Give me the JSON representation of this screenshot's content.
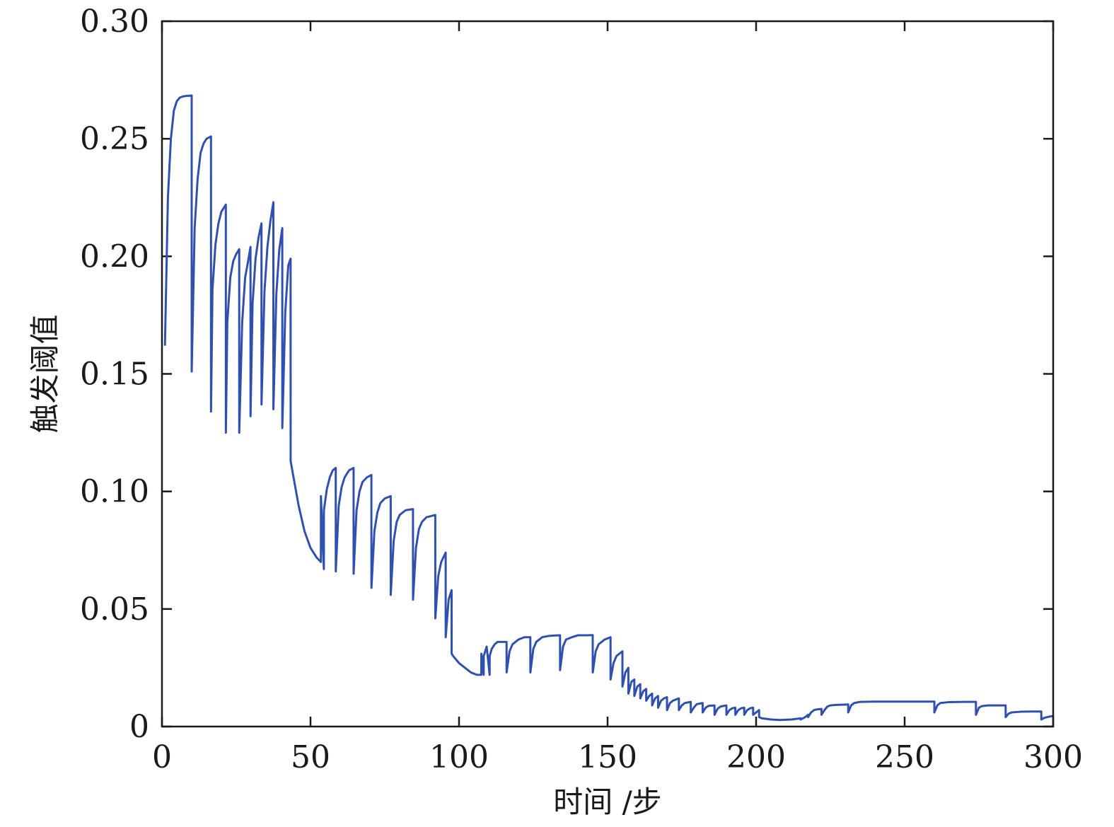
{
  "chart_data": {
    "type": "line",
    "title": "",
    "xlabel": "时间 /步",
    "ylabel": "触发阈值",
    "xlim": [
      0,
      300
    ],
    "ylim": [
      0,
      0.3
    ],
    "xticks": [
      0,
      50,
      100,
      150,
      200,
      250,
      300
    ],
    "xtick_labels": [
      "0",
      "50",
      "100",
      "150",
      "200",
      "250",
      "300"
    ],
    "yticks": [
      0,
      0.05,
      0.1,
      0.15,
      0.2,
      0.25,
      0.3
    ],
    "ytick_labels": [
      "0",
      "0.05",
      "0.10",
      "0.15",
      "0.20",
      "0.25",
      "0.30"
    ],
    "grid": false,
    "line_color": "#3050b0",
    "series": [
      {
        "x": [
          1,
          2,
          3,
          4,
          5,
          6,
          7,
          8,
          9,
          10,
          10.01,
          11,
          12,
          13,
          14,
          15,
          16.5,
          16.51,
          17,
          18,
          19,
          20,
          21.5,
          21.51,
          22,
          23,
          24,
          25,
          26,
          26.01,
          27,
          28,
          29,
          29.8,
          29.81,
          30.5,
          31.5,
          32.5,
          33.5,
          33.51,
          34.5,
          35.5,
          36.5,
          37.5,
          37.51,
          38.5,
          39.5,
          40.5,
          40.51,
          41.5,
          42.5,
          43.3,
          43.31,
          44,
          46,
          48,
          50,
          52,
          53.5,
          53.51,
          54.5,
          54.51,
          55.5,
          56.5,
          57.5,
          58.5,
          58.51,
          59.5,
          60.5,
          61.5,
          63,
          64.5,
          64.51,
          65.5,
          66.5,
          67.5,
          69,
          70.5,
          70.51,
          71.5,
          72.5,
          73.5,
          75,
          77,
          77.01,
          78,
          79,
          80,
          82,
          84.5,
          84.51,
          85.5,
          86.5,
          87.5,
          89,
          92,
          92.01,
          93,
          94,
          95.5,
          95.51,
          96.5,
          97.5,
          97.51,
          98,
          100,
          102,
          104,
          106,
          107.5,
          107.51,
          108.3,
          108.31,
          109.3,
          110.3,
          110.31,
          111,
          112,
          113,
          114.5,
          116,
          116.01,
          117,
          118,
          120,
          122,
          124,
          124.01,
          125,
          126,
          128,
          130,
          132,
          134,
          134.01,
          135,
          136,
          138,
          140,
          143,
          145,
          145.01,
          146,
          147,
          149,
          151,
          151.01,
          152,
          153,
          154,
          155,
          155.01,
          156,
          157,
          157.01,
          158,
          159,
          159.01,
          160,
          161,
          161.01,
          162,
          163,
          163.01,
          164,
          165,
          165.01,
          166,
          167,
          167.01,
          168,
          169,
          170,
          170.01,
          171,
          172,
          174,
          174.01,
          175,
          176,
          178,
          178.01,
          179,
          180,
          182,
          182.01,
          183,
          184,
          186,
          186.01,
          187,
          188,
          190,
          190.01,
          191,
          192,
          193,
          193.01,
          194,
          195,
          196,
          196.01,
          197,
          198,
          199,
          199.01,
          200,
          201,
          201.01,
          202,
          205,
          208,
          212,
          215,
          215.01,
          216.5,
          217.5,
          217.51,
          218.5,
          219.5,
          220.5,
          222,
          222.01,
          223,
          224,
          225,
          227,
          229,
          231,
          231.01,
          232,
          233,
          235,
          240,
          245,
          250,
          255,
          260,
          260.01,
          261,
          262,
          265,
          270,
          274,
          274.01,
          275,
          276,
          278,
          282,
          284,
          284.01,
          285,
          286,
          289,
          293,
          296,
          296.01,
          297,
          298,
          299,
          300
        ],
        "y": [
          0.162,
          0.225,
          0.25,
          0.262,
          0.266,
          0.2675,
          0.268,
          0.2682,
          0.2683,
          0.2684,
          0.151,
          0.212,
          0.233,
          0.244,
          0.248,
          0.25,
          0.251,
          0.134,
          0.186,
          0.205,
          0.214,
          0.219,
          0.222,
          0.125,
          0.172,
          0.191,
          0.198,
          0.201,
          0.203,
          0.125,
          0.172,
          0.191,
          0.198,
          0.204,
          0.132,
          0.18,
          0.199,
          0.208,
          0.214,
          0.137,
          0.185,
          0.204,
          0.215,
          0.223,
          0.135,
          0.184,
          0.203,
          0.212,
          0.127,
          0.176,
          0.196,
          0.199,
          0.113,
          0.108,
          0.094,
          0.083,
          0.076,
          0.072,
          0.07,
          0.098,
          0.067,
          0.092,
          0.101,
          0.106,
          0.109,
          0.11,
          0.066,
          0.094,
          0.102,
          0.106,
          0.109,
          0.11,
          0.065,
          0.092,
          0.1,
          0.104,
          0.106,
          0.107,
          0.059,
          0.083,
          0.091,
          0.095,
          0.097,
          0.098,
          0.056,
          0.079,
          0.087,
          0.09,
          0.092,
          0.0925,
          0.054,
          0.076,
          0.084,
          0.087,
          0.089,
          0.09,
          0.046,
          0.064,
          0.07,
          0.074,
          0.038,
          0.054,
          0.058,
          0.031,
          0.03,
          0.027,
          0.025,
          0.023,
          0.022,
          0.022,
          0.031,
          0.022,
          0.03,
          0.034,
          0.022,
          0.03,
          0.033,
          0.035,
          0.036,
          0.036,
          0.036,
          0.023,
          0.032,
          0.035,
          0.037,
          0.038,
          0.038,
          0.023,
          0.033,
          0.036,
          0.038,
          0.0385,
          0.0387,
          0.0388,
          0.024,
          0.034,
          0.037,
          0.038,
          0.0388,
          0.0388,
          0.0389,
          0.023,
          0.032,
          0.035,
          0.037,
          0.038,
          0.02,
          0.027,
          0.03,
          0.031,
          0.032,
          0.017,
          0.023,
          0.025,
          0.014,
          0.019,
          0.02,
          0.013,
          0.017,
          0.018,
          0.012,
          0.015,
          0.016,
          0.011,
          0.013,
          0.014,
          0.009,
          0.012,
          0.013,
          0.008,
          0.011,
          0.012,
          0.0125,
          0.007,
          0.01,
          0.011,
          0.012,
          0.007,
          0.009,
          0.01,
          0.0105,
          0.006,
          0.008,
          0.0095,
          0.01,
          0.006,
          0.008,
          0.0088,
          0.009,
          0.005,
          0.0075,
          0.0085,
          0.009,
          0.005,
          0.007,
          0.0078,
          0.008,
          0.005,
          0.007,
          0.0078,
          0.008,
          0.005,
          0.007,
          0.0078,
          0.008,
          0.005,
          0.006,
          0.007,
          0.004,
          0.0035,
          0.003,
          0.0028,
          0.003,
          0.0035,
          0.003,
          0.004,
          0.005,
          0.004,
          0.006,
          0.007,
          0.0073,
          0.0075,
          0.005,
          0.007,
          0.0085,
          0.009,
          0.0092,
          0.0093,
          0.0094,
          0.006,
          0.009,
          0.01,
          0.0105,
          0.0106,
          0.0106,
          0.0106,
          0.0106,
          0.0106,
          0.006,
          0.009,
          0.01,
          0.0104,
          0.0105,
          0.0105,
          0.005,
          0.008,
          0.0087,
          0.009,
          0.009,
          0.009,
          0.004,
          0.0055,
          0.006,
          0.0063,
          0.0064,
          0.0064,
          0.003,
          0.0037,
          0.004,
          0.0043,
          0.0045
        ]
      }
    ]
  }
}
